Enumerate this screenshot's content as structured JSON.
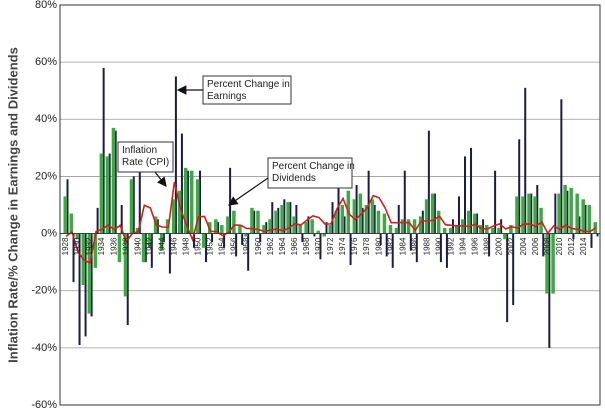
{
  "chart_data": {
    "type": "bar_line",
    "ylabel": "Inflation Rate/% Change in Earnings and Dividends",
    "categories": [
      "1928",
      null,
      "1930",
      null,
      "1932",
      null,
      "1934",
      null,
      "1936",
      null,
      "1938",
      null,
      "1940",
      null,
      "1942",
      null,
      "1944",
      null,
      "1946",
      null,
      "1948",
      null,
      "1950",
      null,
      "1952",
      null,
      "1954",
      null,
      "1956",
      null,
      "1958",
      null,
      "1960",
      null,
      "1962",
      null,
      "1964",
      null,
      "1966",
      null,
      "1968",
      null,
      "1970",
      null,
      "1972",
      null,
      "1974",
      null,
      "1976",
      null,
      "1978",
      null,
      "1980",
      null,
      "1982",
      null,
      "1984",
      null,
      "1986",
      null,
      "1988",
      null,
      "1990",
      null,
      "1992",
      null,
      "1994",
      null,
      "1996",
      null,
      "1998",
      null,
      "2000",
      null,
      "2002",
      null,
      "2004",
      null,
      "2006",
      null,
      "2008",
      null,
      "2010",
      null,
      "2012",
      null,
      "2014",
      null,
      null
    ],
    "series": [
      {
        "name": "Percent Change in Earnings",
        "kind": "bar",
        "color": "#1c1c46",
        "values": [
          19,
          -17,
          -39,
          -36,
          -29,
          9,
          58,
          28,
          36,
          10,
          -32,
          20,
          32,
          -10,
          -12,
          5,
          -3,
          -14,
          55,
          35,
          22,
          -5,
          22,
          -10,
          -3,
          4,
          -5,
          23,
          -8,
          -4,
          -13,
          8,
          -3,
          4,
          11,
          9,
          12,
          11,
          10,
          -3,
          6,
          -1,
          -9,
          4,
          11,
          19,
          6,
          -11,
          17,
          9,
          22,
          10,
          -4,
          -8,
          -12,
          10,
          22,
          -6,
          -10,
          8,
          36,
          14,
          -10,
          -12,
          5,
          13,
          27,
          30,
          7,
          5,
          -8,
          22,
          5,
          -31,
          -25,
          33,
          51,
          14,
          17,
          -8,
          -40,
          14,
          47,
          15,
          -2,
          6,
          10,
          -5,
          -1
        ]
      },
      {
        "name": "Percent Change in Dividends",
        "kind": "bar",
        "color": "#3fa845",
        "values": [
          13,
          7,
          -2,
          -18,
          -28,
          -12,
          28,
          27,
          37,
          -10,
          -22,
          19,
          2,
          -10,
          -5,
          6,
          -6,
          5,
          12,
          15,
          23,
          22,
          19,
          -5,
          4,
          5,
          3,
          6,
          8,
          3,
          -1,
          9,
          8,
          3,
          5,
          8,
          10,
          11,
          6,
          3,
          4,
          5,
          1,
          -1,
          3,
          8,
          10,
          15,
          12,
          14,
          10,
          12,
          8,
          7,
          3,
          2,
          5,
          5,
          5,
          6,
          12,
          14,
          8,
          2,
          2,
          3,
          5,
          8,
          7,
          3,
          3,
          2,
          2,
          -2,
          3,
          13,
          13,
          14,
          13,
          9,
          -21,
          -21,
          14,
          17,
          16,
          14,
          12,
          10,
          4
        ]
      },
      {
        "name": "Inflation Rate (CPI)",
        "kind": "line",
        "color": "#d0201c",
        "values": [
          -1,
          0.6,
          -6.4,
          -9.3,
          -10.3,
          0.8,
          1.5,
          3,
          1.4,
          2.9,
          -2.8,
          0,
          0.7,
          9.9,
          9,
          3,
          2.3,
          2.2,
          18.1,
          8.8,
          3,
          -2.1,
          5.9,
          6,
          0.8,
          0.7,
          -0.7,
          0.4,
          3,
          2.9,
          1.8,
          1.7,
          1.4,
          0.7,
          1.3,
          1.6,
          1,
          1.9,
          3.5,
          3,
          4.7,
          6.2,
          5.6,
          3.3,
          3.4,
          8.7,
          12.3,
          6.9,
          4.9,
          6.7,
          9,
          13.3,
          12.5,
          8.9,
          3.8,
          3.8,
          3.9,
          3.8,
          1.1,
          4.4,
          4.4,
          4.6,
          6.1,
          3.1,
          2.9,
          2.7,
          2.7,
          2.5,
          3.3,
          1.7,
          1.6,
          2.7,
          3.4,
          1.6,
          2.4,
          1.9,
          3.3,
          3.4,
          2.5,
          4.1,
          0.1,
          2.7,
          1.5,
          3,
          1.7,
          1.5,
          0.8,
          0.7,
          2.1
        ]
      }
    ],
    "ylim": [
      -60,
      80
    ],
    "yticks": [
      {
        "value": -60,
        "label": "-60%"
      },
      {
        "value": -40,
        "label": "-40%"
      },
      {
        "value": -20,
        "label": "-20%"
      },
      {
        "value": 0,
        "label": "0%"
      },
      {
        "value": 20,
        "label": "20%"
      },
      {
        "value": 40,
        "label": "40%"
      },
      {
        "value": 60,
        "label": "60%"
      },
      {
        "value": 80,
        "label": "80%"
      }
    ],
    "grid": true,
    "annotations": [
      {
        "lines": [
          "Percent Change in",
          "Earnings"
        ]
      },
      {
        "lines": [
          "Inflation",
          "Rate (CPI)"
        ]
      },
      {
        "lines": [
          "Percent Change in",
          "Dividends"
        ]
      }
    ]
  }
}
